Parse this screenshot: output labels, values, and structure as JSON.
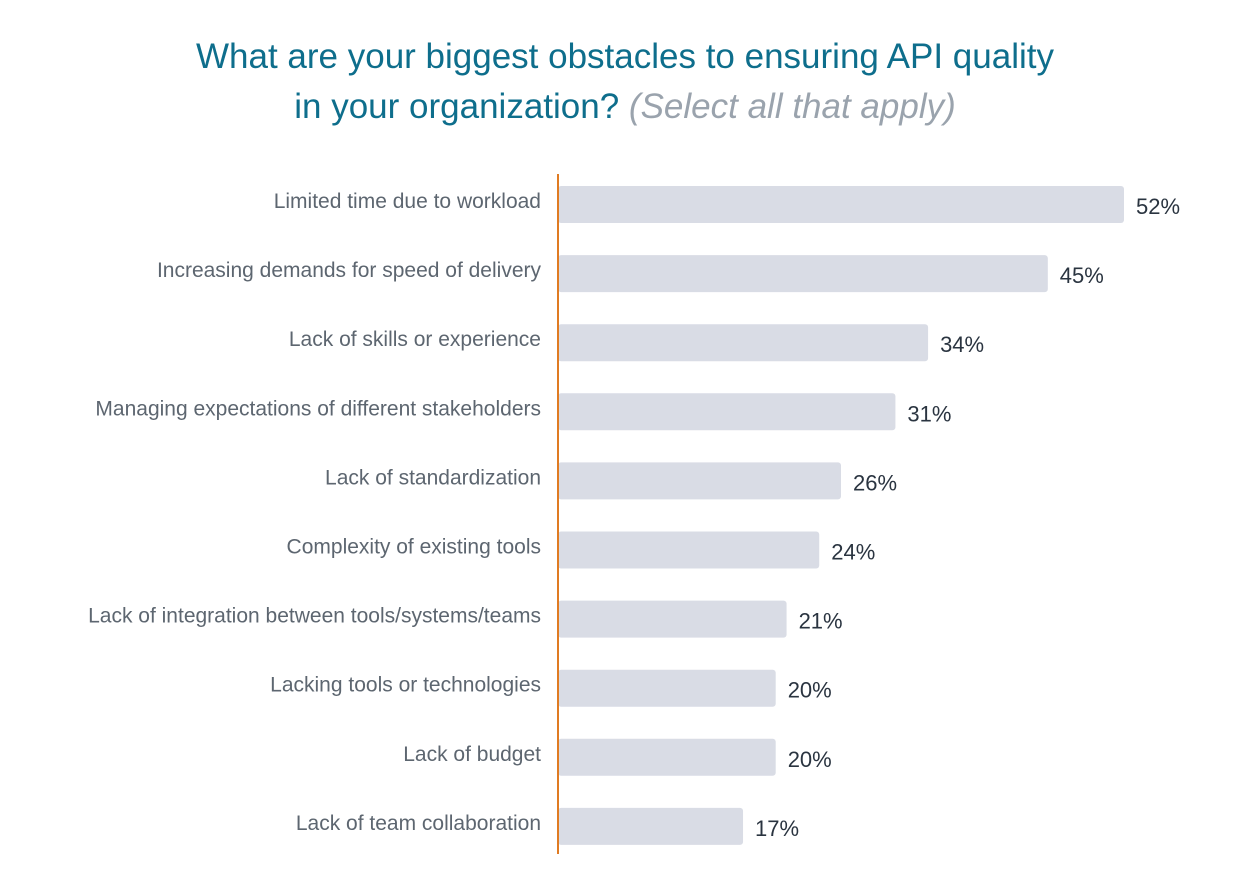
{
  "chart_data": {
    "type": "bar",
    "orientation": "horizontal",
    "title_line1": "What are your biggest obstacles to ensuring API quality",
    "title_line2": "in your organization?",
    "subtitle": "(Select all that apply)",
    "categories": [
      "Limited time due to workload",
      "Increasing demands for speed of delivery",
      "Lack of skills or experience",
      "Managing expectations of different stakeholders",
      "Lack of standardization",
      "Complexity of existing tools",
      "Lack of integration between tools/systems/teams",
      "Lacking tools or technologies",
      "Lack of budget",
      "Lack of team collaboration"
    ],
    "values": [
      52,
      45,
      34,
      31,
      26,
      24,
      21,
      20,
      20,
      17
    ],
    "value_labels": [
      "52%",
      "45%",
      "34%",
      "31%",
      "26%",
      "24%",
      "21%",
      "20%",
      "20%",
      "17%"
    ],
    "unit": "%",
    "xlim": [
      0,
      52
    ],
    "grid": false,
    "legend": "none",
    "colors": {
      "bar": "#d9dce5",
      "axis": "#e07b22",
      "title": "#0e6e8c",
      "subtitle": "#9aa3ad",
      "category_text": "#5d6670",
      "value_text": "#2a3440"
    }
  }
}
